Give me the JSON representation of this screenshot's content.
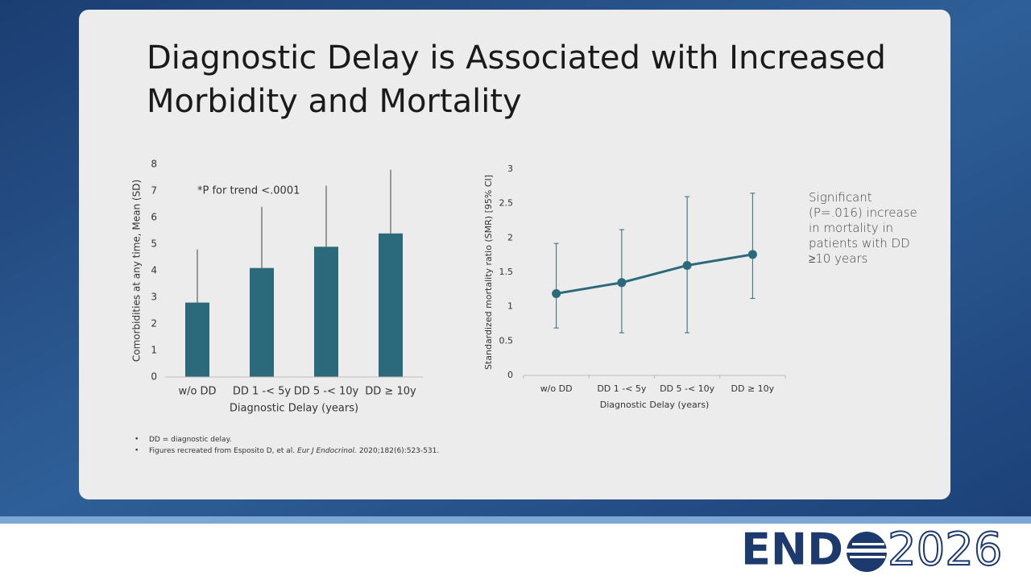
{
  "slide": {
    "title_lines": [
      "Diagnostic Delay is Associated with Increased",
      "Morbidity and Mortality"
    ],
    "note": "Significant (P=.016) increase in mortality in patients with DD ≥10 years",
    "footnotes": [
      [
        "DD = diagnostic delay."
      ],
      [
        "Figures recreated from Esposito D, et al. ",
        "Eur J Endocrinol.",
        "2020;182(6):523-531."
      ]
    ],
    "logo": {
      "left": "END",
      "right": "2026"
    }
  },
  "chart_data": [
    {
      "type": "bar",
      "annotation": "*P for trend <.0001",
      "y_label": "Comorbidities at any time, Mean (SD)",
      "x_label": "Diagnostic Delay (years)",
      "categories": [
        "w/o DD",
        "DD 1 -< 5y",
        "DD 5 -< 10y",
        "DD ≥ 10y"
      ],
      "values": [
        2.8,
        4.1,
        4.9,
        5.4
      ],
      "errors": [
        2.0,
        2.3,
        2.3,
        2.4
      ],
      "color": "#2b6a7a",
      "ylim": [
        0,
        8
      ],
      "yticks": [
        0,
        1,
        2,
        3,
        4,
        5,
        6,
        7,
        8
      ]
    },
    {
      "type": "line",
      "y_label": "Standardized mortality ratio (SMR) [95% CI]",
      "x_label": "Diagnostic Delay (years)",
      "categories": [
        "w/o DD",
        "DD 1 -< 5y",
        "DD 5 -< 10y",
        "DD ≥ 10y"
      ],
      "values": [
        1.19,
        1.35,
        1.6,
        1.76
      ],
      "lower": [
        0.69,
        0.62,
        0.62,
        1.12
      ],
      "upper": [
        1.92,
        2.12,
        2.6,
        2.65
      ],
      "color": "#2b6a7a",
      "ylim": [
        0,
        3
      ],
      "yticks": [
        0,
        0.5,
        1,
        1.5,
        2,
        2.5,
        3
      ]
    }
  ]
}
